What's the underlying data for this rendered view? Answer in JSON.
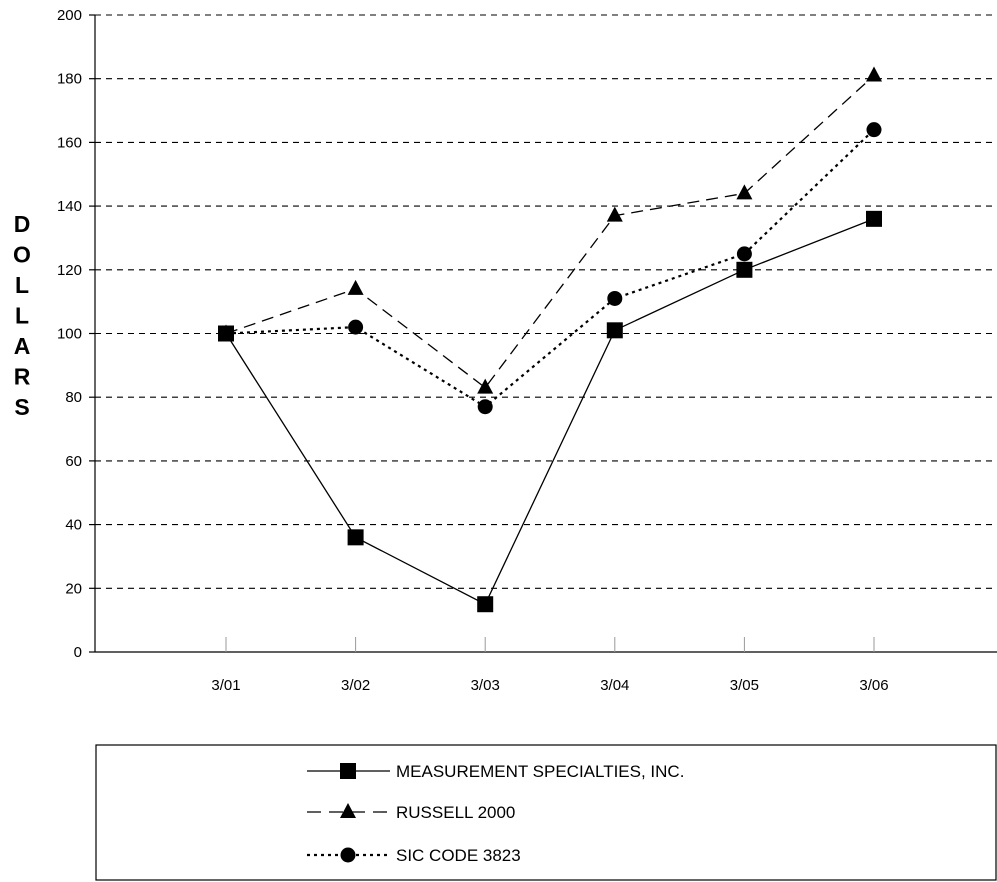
{
  "chart_data": {
    "type": "line",
    "title": "",
    "xlabel": "",
    "ylabel": "DOLLARS",
    "categories": [
      "3/01",
      "3/02",
      "3/03",
      "3/04",
      "3/05",
      "3/06"
    ],
    "ylim": [
      0,
      200
    ],
    "yticks": [
      0,
      20,
      40,
      60,
      80,
      100,
      120,
      140,
      160,
      180,
      200
    ],
    "grid": "horizontal-dashed",
    "legend_position": "bottom",
    "series": [
      {
        "name": "MEASUREMENT SPECIALTIES, INC.",
        "marker": "square",
        "line_style": "solid",
        "values": [
          100,
          36,
          15,
          101,
          120,
          136
        ]
      },
      {
        "name": "RUSSELL 2000",
        "marker": "triangle",
        "line_style": "dashed",
        "values": [
          100,
          114,
          83,
          137,
          144,
          181
        ]
      },
      {
        "name": "SIC CODE 3823",
        "marker": "circle",
        "line_style": "dotted",
        "values": [
          100,
          102,
          77,
          111,
          125,
          164
        ]
      }
    ]
  }
}
